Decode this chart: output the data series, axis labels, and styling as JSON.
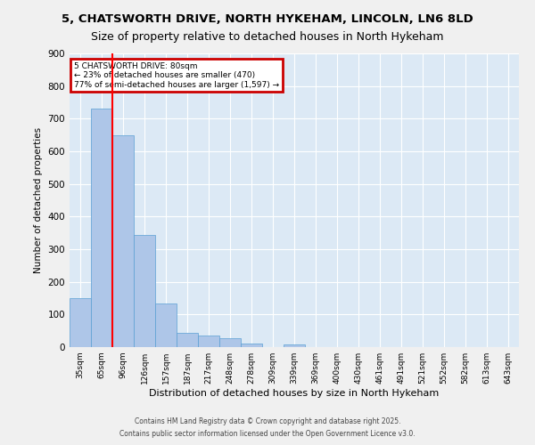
{
  "title_line1": "5, CHATSWORTH DRIVE, NORTH HYKEHAM, LINCOLN, LN6 8LD",
  "title_line2": "Size of property relative to detached houses in North Hykeham",
  "categories": [
    "35sqm",
    "65sqm",
    "96sqm",
    "126sqm",
    "157sqm",
    "187sqm",
    "217sqm",
    "248sqm",
    "278sqm",
    "309sqm",
    "339sqm",
    "369sqm",
    "400sqm",
    "430sqm",
    "461sqm",
    "491sqm",
    "521sqm",
    "552sqm",
    "582sqm",
    "613sqm",
    "643sqm"
  ],
  "values": [
    150,
    730,
    650,
    345,
    135,
    43,
    35,
    28,
    10,
    0,
    8,
    0,
    0,
    0,
    0,
    0,
    0,
    0,
    0,
    0,
    0
  ],
  "bar_color": "#aec6e8",
  "bar_edge_color": "#5a9fd4",
  "red_line_label": "5 CHATSWORTH DRIVE: 80sqm",
  "annotation_line1": "← 23% of detached houses are smaller (470)",
  "annotation_line2": "77% of semi-detached houses are larger (1,597) →",
  "ylabel": "Number of detached properties",
  "xlabel": "Distribution of detached houses by size in North Hykeham",
  "ylim": [
    0,
    900
  ],
  "yticks": [
    0,
    100,
    200,
    300,
    400,
    500,
    600,
    700,
    800,
    900
  ],
  "footer_line1": "Contains HM Land Registry data © Crown copyright and database right 2025.",
  "footer_line2": "Contains public sector information licensed under the Open Government Licence v3.0.",
  "plot_bg_color": "#dce9f5",
  "grid_color": "#ffffff",
  "box_color": "#cc0000"
}
